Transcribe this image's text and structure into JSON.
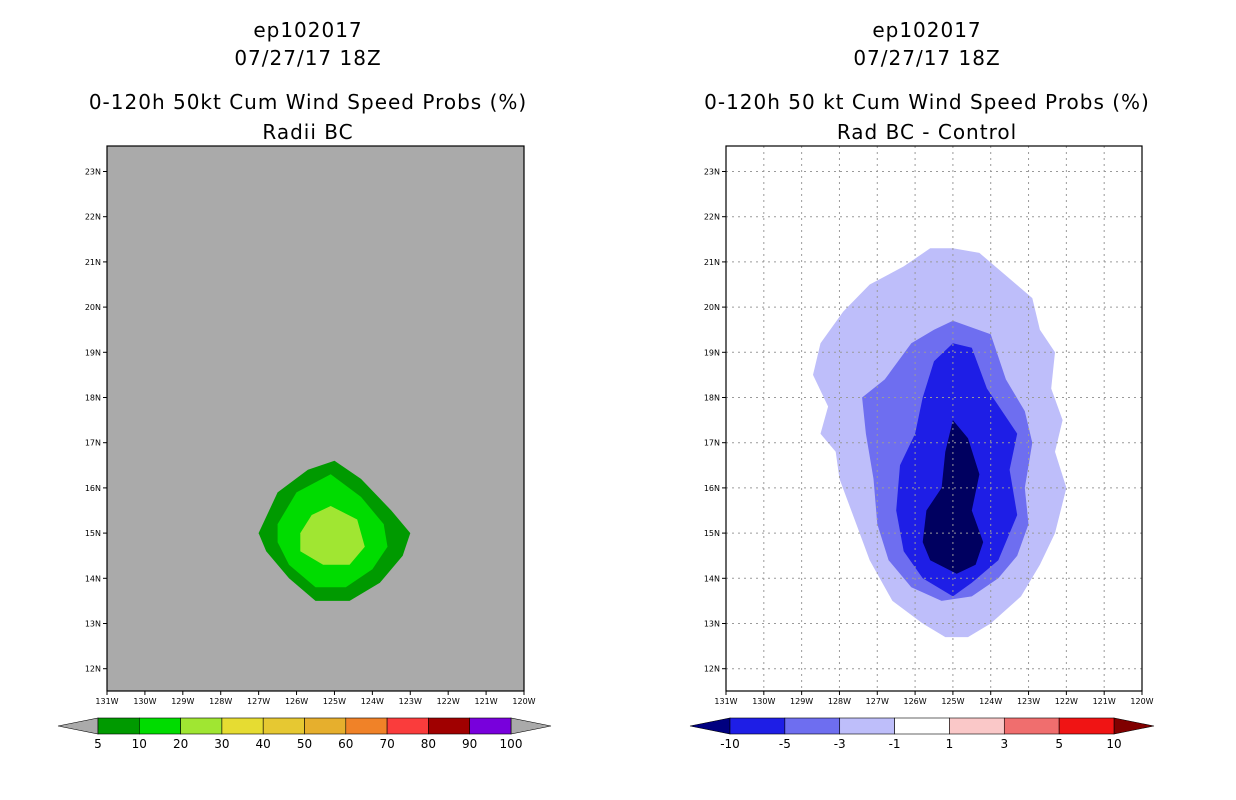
{
  "panels": [
    {
      "storm": "ep102017",
      "datetime": "07/27/17 18Z",
      "title": "0-120h 50kt Cum Wind Speed Probs (%)",
      "subtitle": "Radii BC",
      "background": "#aaaaaa",
      "grid": false,
      "x_ticks": [
        "131W",
        "130W",
        "129W",
        "128W",
        "127W",
        "126W",
        "125W",
        "124W",
        "123W",
        "122W",
        "121W",
        "120W"
      ],
      "y_ticks": [
        "12N",
        "13N",
        "14N",
        "15N",
        "16N",
        "17N",
        "18N",
        "19N",
        "20N",
        "21N",
        "22N",
        "23N"
      ],
      "colorbar": {
        "labels": [
          "5",
          "10",
          "20",
          "30",
          "40",
          "50",
          "60",
          "70",
          "80",
          "90",
          "100"
        ],
        "colors": [
          "#009a00",
          "#00dc00",
          "#a0e632",
          "#e6dc32",
          "#e6c832",
          "#e6af2d",
          "#f08228",
          "#fa3c3c",
          "#a00000",
          "#7800dc"
        ],
        "low_arrow_color": "#aaaaaa",
        "high_arrow_color": "#aaaaaa"
      }
    },
    {
      "storm": "ep102017",
      "datetime": "07/27/17 18Z",
      "title": "0-120h 50 kt Cum Wind Speed Probs (%)",
      "subtitle": "Rad BC - Control",
      "background": "#ffffff",
      "grid": true,
      "x_ticks": [
        "131W",
        "130W",
        "129W",
        "128W",
        "127W",
        "126W",
        "125W",
        "124W",
        "123W",
        "122W",
        "121W",
        "120W"
      ],
      "y_ticks": [
        "12N",
        "13N",
        "14N",
        "15N",
        "16N",
        "17N",
        "18N",
        "19N",
        "20N",
        "21N",
        "22N",
        "23N"
      ],
      "colorbar": {
        "labels": [
          "-10",
          "-5",
          "-3",
          "-1",
          "1",
          "3",
          "5",
          "10"
        ],
        "colors": [
          "#1e1ee6",
          "#6e6ef0",
          "#bebefa",
          "#ffffff",
          "#fac8c8",
          "#f06e6e",
          "#f01414"
        ],
        "low_arrow_color": "#000080",
        "high_arrow_color": "#800000"
      }
    }
  ],
  "chart_data": [
    {
      "type": "heatmap",
      "title": "0-120h 50kt Cum Wind Speed Probs (%)",
      "subtitle": "Radii BC",
      "xlim": [
        -131,
        -120
      ],
      "ylim": [
        11.5,
        23.5
      ],
      "contours": [
        {
          "level": "5-10",
          "color": "#009a00",
          "lonlat": [
            [
              -125.0,
              16.6
            ],
            [
              -124.3,
              16.2
            ],
            [
              -123.5,
              15.5
            ],
            [
              -123.0,
              15.0
            ],
            [
              -123.2,
              14.5
            ],
            [
              -123.8,
              13.9
            ],
            [
              -124.6,
              13.5
            ],
            [
              -125.5,
              13.5
            ],
            [
              -126.2,
              14.0
            ],
            [
              -126.8,
              14.6
            ],
            [
              -127.0,
              15.0
            ],
            [
              -126.5,
              15.9
            ],
            [
              -125.7,
              16.4
            ]
          ]
        },
        {
          "level": "10-20",
          "color": "#00dc00",
          "lonlat": [
            [
              -125.1,
              16.3
            ],
            [
              -124.3,
              15.8
            ],
            [
              -123.7,
              15.2
            ],
            [
              -123.6,
              14.7
            ],
            [
              -124.0,
              14.2
            ],
            [
              -124.7,
              13.8
            ],
            [
              -125.5,
              13.8
            ],
            [
              -126.2,
              14.3
            ],
            [
              -126.5,
              14.8
            ],
            [
              -126.5,
              15.2
            ],
            [
              -126.0,
              15.9
            ]
          ]
        },
        {
          "level": "20-30",
          "color": "#a0e632",
          "lonlat": [
            [
              -125.1,
              15.6
            ],
            [
              -124.4,
              15.3
            ],
            [
              -124.2,
              14.7
            ],
            [
              -124.6,
              14.3
            ],
            [
              -125.3,
              14.3
            ],
            [
              -125.9,
              14.6
            ],
            [
              -125.9,
              15.0
            ],
            [
              -125.6,
              15.4
            ]
          ]
        }
      ]
    },
    {
      "type": "heatmap",
      "title": "0-120h 50 kt Cum Wind Speed Probs (%)",
      "subtitle": "Rad BC - Control",
      "xlim": [
        -131,
        -120
      ],
      "ylim": [
        11.5,
        23.5
      ],
      "contours": [
        {
          "level": "-3 to -1",
          "color": "#bebefa",
          "lonlat": [
            [
              -125.0,
              21.3
            ],
            [
              -124.3,
              21.2
            ],
            [
              -123.6,
              20.7
            ],
            [
              -122.9,
              20.2
            ],
            [
              -122.7,
              19.5
            ],
            [
              -122.3,
              19.0
            ],
            [
              -122.4,
              18.2
            ],
            [
              -122.1,
              17.5
            ],
            [
              -122.3,
              16.8
            ],
            [
              -122.0,
              16.0
            ],
            [
              -122.3,
              15.0
            ],
            [
              -122.7,
              14.3
            ],
            [
              -123.2,
              13.6
            ],
            [
              -124.0,
              13.0
            ],
            [
              -124.6,
              12.7
            ],
            [
              -125.2,
              12.7
            ],
            [
              -125.8,
              13.0
            ],
            [
              -126.6,
              13.5
            ],
            [
              -127.2,
              14.4
            ],
            [
              -127.6,
              15.3
            ],
            [
              -128.0,
              16.2
            ],
            [
              -128.1,
              16.8
            ],
            [
              -128.5,
              17.2
            ],
            [
              -128.3,
              17.8
            ],
            [
              -128.7,
              18.5
            ],
            [
              -128.5,
              19.2
            ],
            [
              -127.9,
              19.9
            ],
            [
              -127.2,
              20.5
            ],
            [
              -126.3,
              20.9
            ],
            [
              -125.6,
              21.3
            ]
          ]
        },
        {
          "level": "-5 to -3",
          "color": "#6e6ef0",
          "lonlat": [
            [
              -125.0,
              19.7
            ],
            [
              -124.0,
              19.4
            ],
            [
              -123.6,
              18.4
            ],
            [
              -123.1,
              17.7
            ],
            [
              -122.9,
              17.0
            ],
            [
              -123.1,
              16.0
            ],
            [
              -123.0,
              15.2
            ],
            [
              -123.3,
              14.5
            ],
            [
              -123.8,
              14.0
            ],
            [
              -124.5,
              13.6
            ],
            [
              -125.3,
              13.5
            ],
            [
              -126.1,
              13.8
            ],
            [
              -126.7,
              14.4
            ],
            [
              -127.0,
              15.2
            ],
            [
              -127.1,
              16.2
            ],
            [
              -127.3,
              17.2
            ],
            [
              -127.4,
              18.0
            ],
            [
              -126.8,
              18.4
            ],
            [
              -126.1,
              19.2
            ],
            [
              -125.5,
              19.5
            ]
          ]
        },
        {
          "level": "-10 to -5",
          "color": "#1e1ee6",
          "lonlat": [
            [
              -125.0,
              19.2
            ],
            [
              -124.5,
              19.1
            ],
            [
              -124.1,
              18.2
            ],
            [
              -123.3,
              17.2
            ],
            [
              -123.5,
              16.4
            ],
            [
              -123.3,
              15.4
            ],
            [
              -123.8,
              14.4
            ],
            [
              -124.5,
              13.9
            ],
            [
              -125.0,
              13.6
            ],
            [
              -125.8,
              14.0
            ],
            [
              -126.3,
              14.6
            ],
            [
              -126.5,
              15.5
            ],
            [
              -126.4,
              16.5
            ],
            [
              -126.0,
              17.2
            ],
            [
              -125.8,
              18.0
            ],
            [
              -125.5,
              18.8
            ]
          ]
        },
        {
          "level": "< -10",
          "color": "#000060",
          "lonlat": [
            [
              -125.0,
              17.5
            ],
            [
              -124.6,
              17.1
            ],
            [
              -124.3,
              16.3
            ],
            [
              -124.5,
              15.5
            ],
            [
              -124.2,
              14.8
            ],
            [
              -124.4,
              14.3
            ],
            [
              -124.9,
              14.1
            ],
            [
              -125.6,
              14.4
            ],
            [
              -125.8,
              14.8
            ],
            [
              -125.7,
              15.5
            ],
            [
              -125.3,
              16.0
            ],
            [
              -125.2,
              16.8
            ]
          ]
        }
      ]
    }
  ]
}
